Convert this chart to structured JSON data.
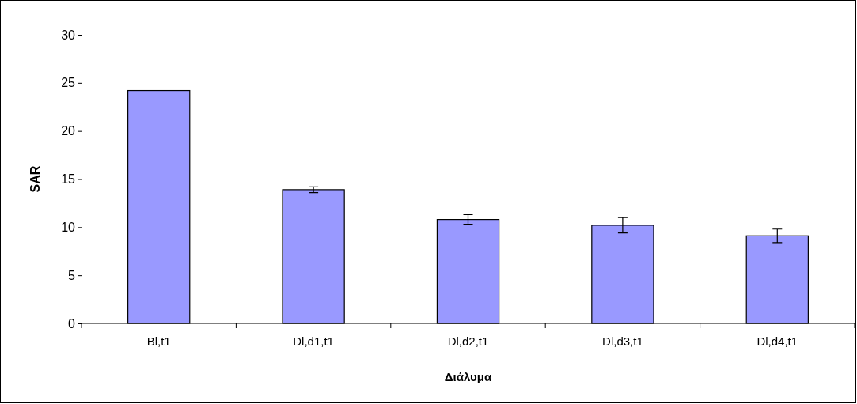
{
  "chart_data": {
    "type": "bar",
    "xlabel": "Διάλυμα",
    "ylabel": "SAR",
    "categories": [
      "Bl,t1",
      "Dl,d1,t1",
      "Dl,d2,t1",
      "Dl,d3,t1",
      "Dl,d4,t1"
    ],
    "values": [
      24.2,
      13.9,
      10.8,
      10.2,
      9.1
    ],
    "errors": [
      null,
      0.3,
      0.5,
      0.8,
      0.7
    ],
    "color": "#9999ff",
    "ylim": [
      0,
      30
    ],
    "yticks": [
      0,
      5,
      10,
      15,
      20,
      25,
      30
    ],
    "grid": false
  }
}
